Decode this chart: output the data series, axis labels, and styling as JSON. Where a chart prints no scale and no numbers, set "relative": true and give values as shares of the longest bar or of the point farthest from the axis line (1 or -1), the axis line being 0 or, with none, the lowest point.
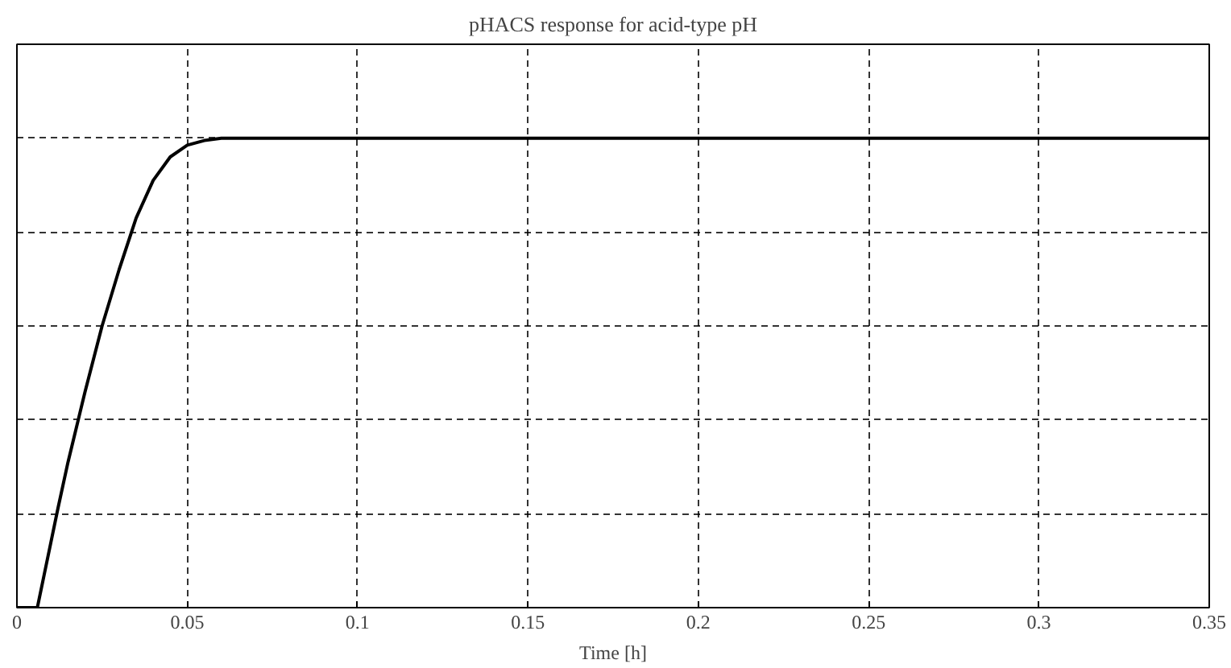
{
  "chart_data": {
    "type": "line",
    "title": "pHACS response for acid-type pH",
    "xlabel": "Time [h]",
    "relative": true,
    "xlim": [
      0,
      0.35
    ],
    "xticks": [
      0,
      0.05,
      0.1,
      0.15,
      0.2,
      0.25,
      0.3,
      0.35
    ],
    "grid": true,
    "line_style": "solid",
    "series": [
      {
        "color": "#000000",
        "x": [
          0,
          0.0055,
          0.006,
          0.008,
          0.01,
          0.012,
          0.015,
          0.018,
          0.02,
          0.025,
          0.03,
          0.035,
          0.04,
          0.045,
          0.05,
          0.055,
          0.06,
          0.07,
          0.35
        ],
        "values": [
          0,
          0,
          0,
          0.07,
          0.14,
          0.21,
          0.31,
          0.4,
          0.46,
          0.6,
          0.72,
          0.83,
          0.91,
          0.96,
          0.985,
          0.995,
          1,
          1,
          1
        ]
      }
    ]
  }
}
